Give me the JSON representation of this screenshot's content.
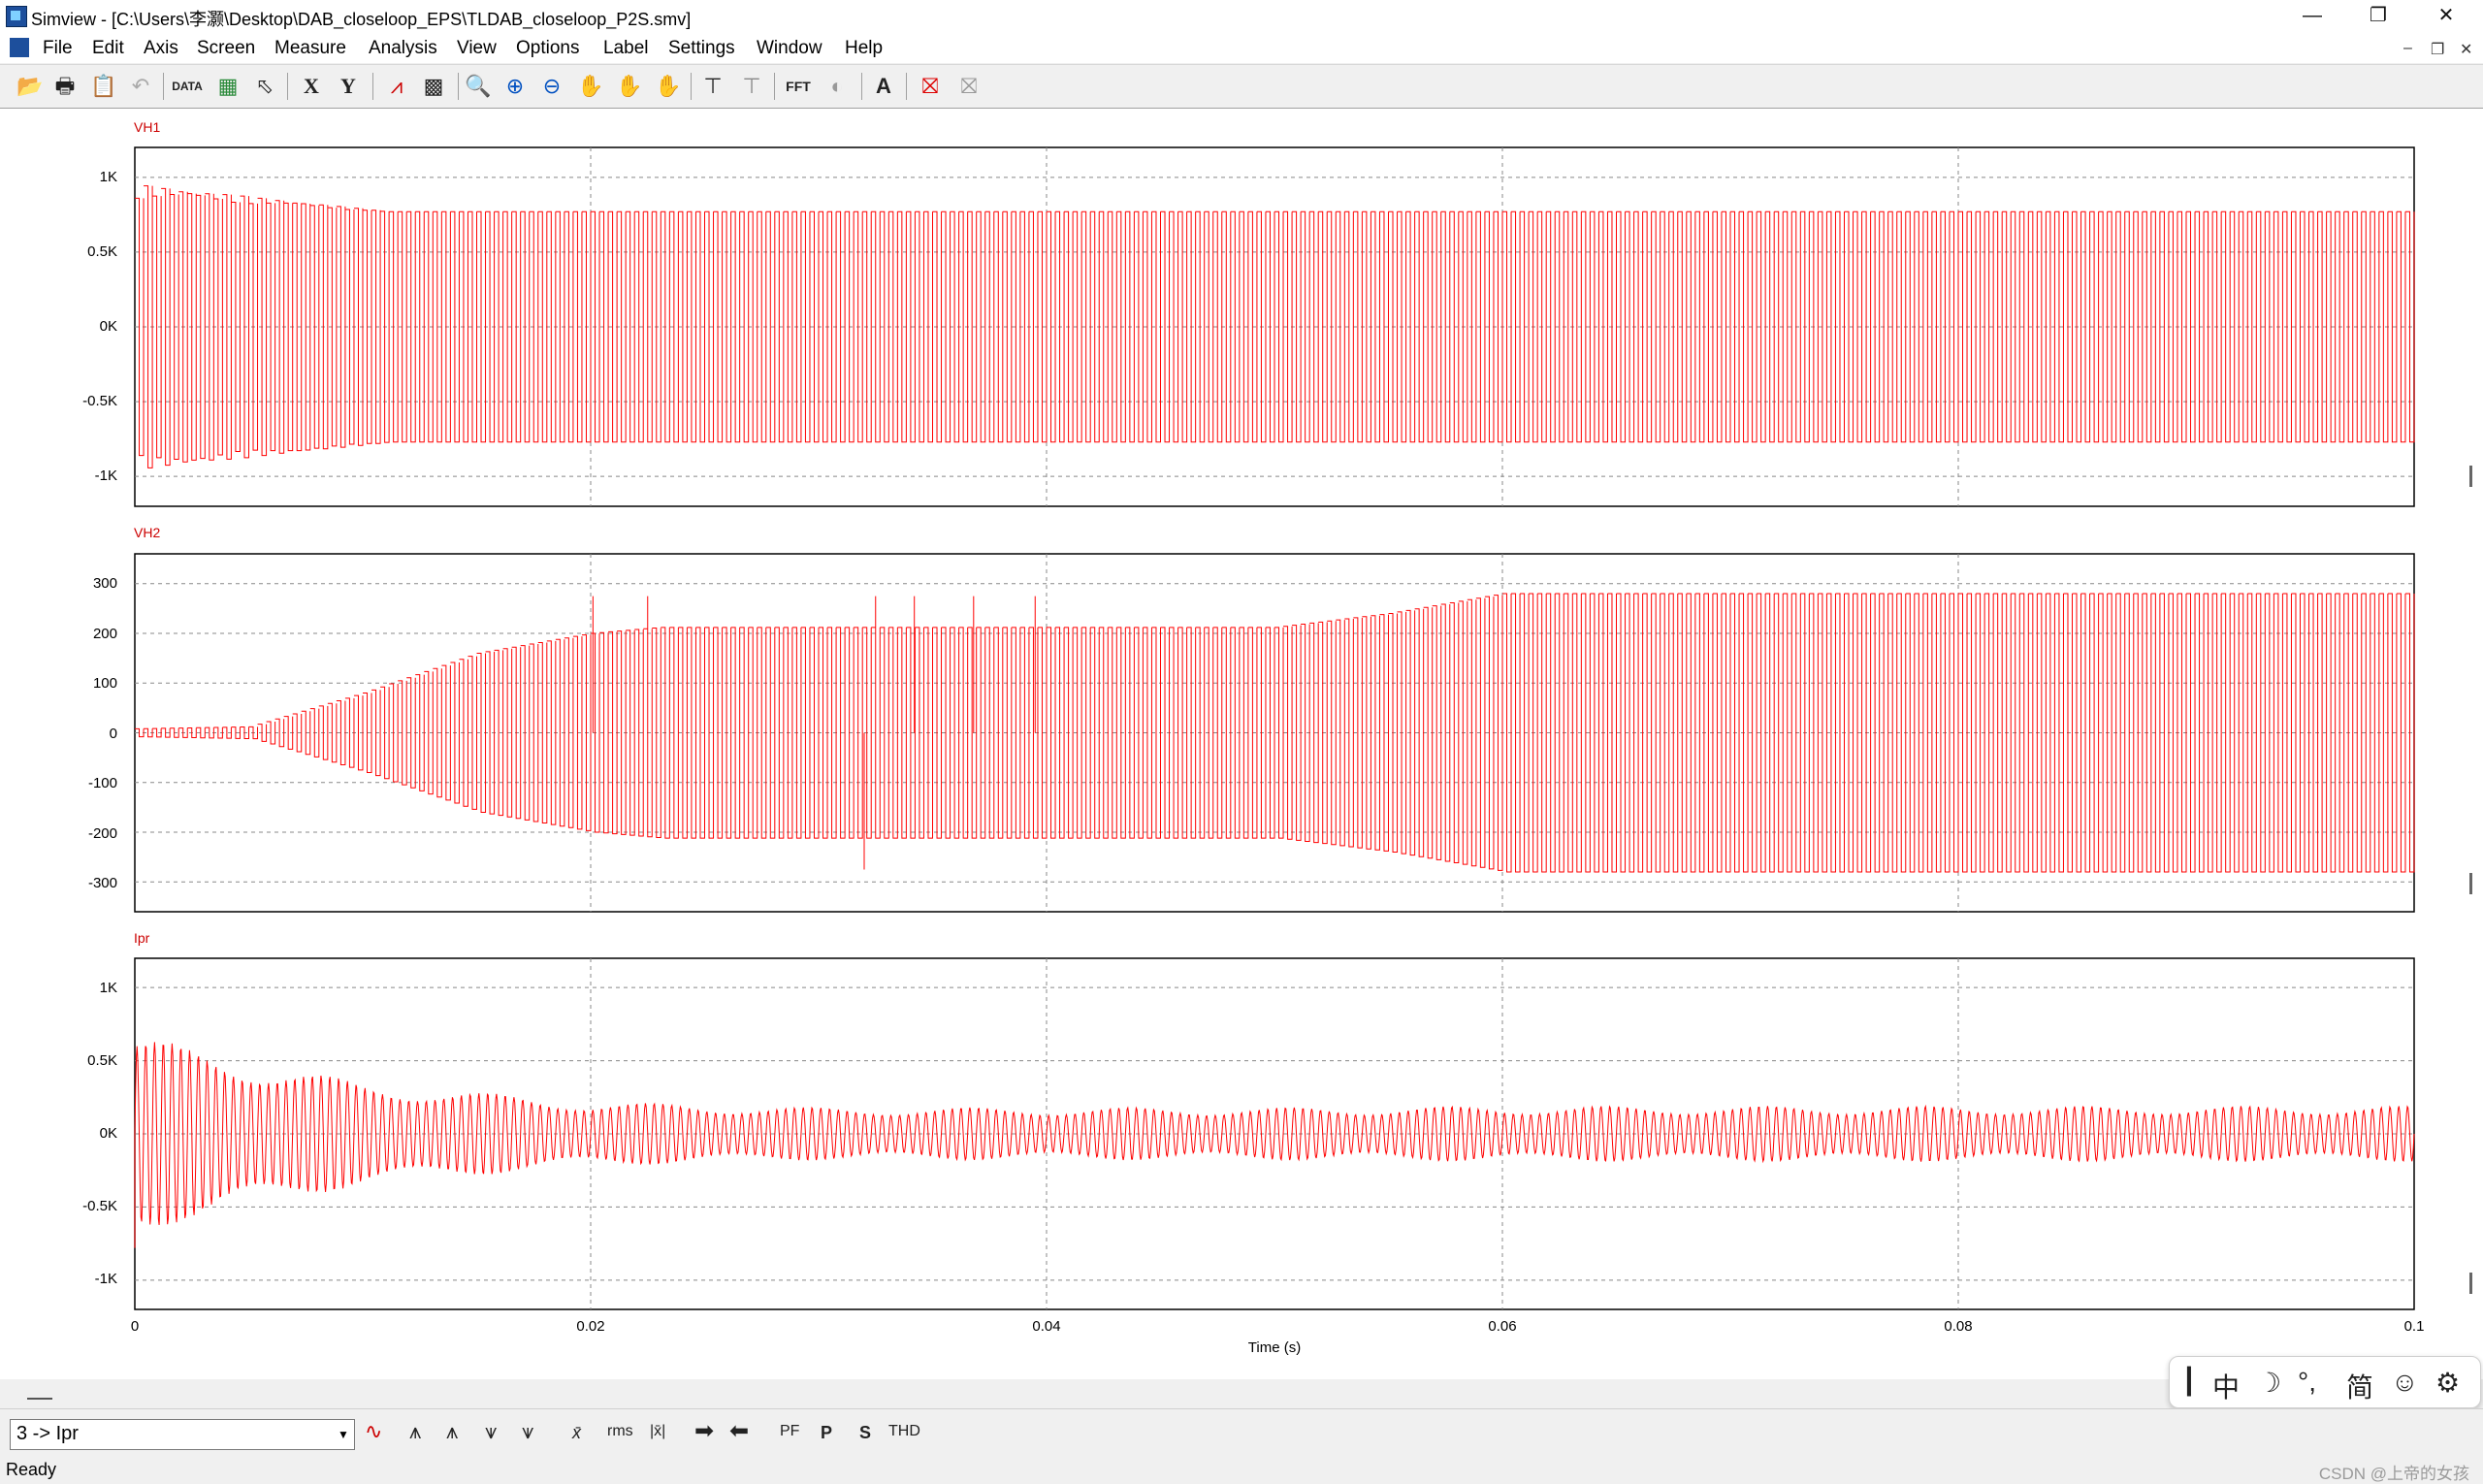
{
  "window": {
    "app_name": "Simview",
    "path": "[C:\\Users\\李灏\\Desktop\\DAB_closeloop_EPS\\TLDAB_closeloop_P2S.smv]",
    "minimize": "—",
    "restore": "❐",
    "close": "✕"
  },
  "menu": {
    "items": [
      "File",
      "Edit",
      "Axis",
      "Screen",
      "Measure",
      "Analysis",
      "View",
      "Options",
      "Label",
      "Settings",
      "Window",
      "Help"
    ],
    "mdi_controls": [
      "–",
      "❐",
      "✕"
    ]
  },
  "toolbar": {
    "icons": [
      "open-icon",
      "print-icon",
      "paste-icon",
      "undo-icon",
      "data-icon",
      "plot-icon",
      "edit-icon",
      "x-axis-icon",
      "y-axis-icon",
      "curve-icon",
      "screen-icon",
      "zoom-icon",
      "zoom-in-icon",
      "zoom-out-icon",
      "pan-icon",
      "pan-right-icon",
      "hand-icon",
      "cursor-icon",
      "cursor2-icon",
      "fft-icon",
      "circle-icon",
      "text-icon",
      "marker-icon",
      "marker2-icon"
    ],
    "x_label": "X",
    "y_label": "Y",
    "fft_label": "FFT",
    "text_label": "A"
  },
  "colors": {
    "trace": "#ff0000",
    "label": "#cc0000",
    "grid": "#888888"
  },
  "chart_data": [
    {
      "type": "line",
      "title": "VH1",
      "x_range": [
        0,
        0.1
      ],
      "ylim": [
        -1200,
        1200
      ],
      "yticks": [
        1000,
        500,
        0,
        -500,
        -1000
      ],
      "ytick_labels": [
        "1K",
        "0.5K",
        "0K",
        "-0.5K",
        "-1K"
      ],
      "grid": true,
      "series": [
        {
          "name": "VH1",
          "shape": "square-wave",
          "steady_amplitude": 770,
          "initial_peak": 950,
          "settle_time": 0.011
        }
      ]
    },
    {
      "type": "line",
      "title": "VH2",
      "x_range": [
        0,
        0.1
      ],
      "ylim": [
        -360,
        360
      ],
      "yticks": [
        300,
        200,
        100,
        0,
        -100,
        -200,
        -300
      ],
      "ytick_labels": [
        "300",
        "200",
        "100",
        "0",
        "-100",
        "-200",
        "-300"
      ],
      "grid": true,
      "series": [
        {
          "name": "VH2",
          "shape": "square-wave-envelope",
          "envelope": [
            [
              0,
              8
            ],
            [
              0.005,
              12
            ],
            [
              0.01,
              80
            ],
            [
              0.015,
              160
            ],
            [
              0.02,
              200
            ],
            [
              0.023,
              212
            ],
            [
              0.05,
              212
            ],
            [
              0.055,
              240
            ],
            [
              0.06,
              280
            ],
            [
              0.1,
              280
            ]
          ],
          "spikes": [
            [
              0.0201,
              275
            ],
            [
              0.0225,
              275
            ],
            [
              0.0325,
              275
            ],
            [
              0.0342,
              275
            ],
            [
              0.0368,
              275
            ],
            [
              0.0395,
              275
            ],
            [
              0.032,
              -275
            ]
          ]
        }
      ]
    },
    {
      "type": "line",
      "title": "Ipr",
      "x_range": [
        0,
        0.1
      ],
      "ylim": [
        -1200,
        1200
      ],
      "yticks": [
        1000,
        500,
        0,
        -500,
        -1000
      ],
      "ytick_labels": [
        "1K",
        "0.5K",
        "0K",
        "-0.5K",
        "-1K"
      ],
      "grid": true,
      "series": [
        {
          "name": "Ipr",
          "shape": "decaying-oscillation",
          "envelope": [
            [
              0,
              700
            ],
            [
              0.002,
              600
            ],
            [
              0.01,
              350
            ],
            [
              0.02,
              220
            ],
            [
              0.03,
              180
            ],
            [
              0.05,
              180
            ],
            [
              0.06,
              190
            ],
            [
              0.1,
              190
            ]
          ],
          "start_dip": -780
        }
      ]
    }
  ],
  "x_axis": {
    "ticks": [
      0,
      0.02,
      0.04,
      0.06,
      0.08,
      0.1
    ],
    "tick_labels": [
      "0",
      "0.02",
      "0.04",
      "0.06",
      "0.08",
      "0.1"
    ],
    "label": "Time (s)"
  },
  "bottom": {
    "selected_curve": "3 -> Ipr",
    "labels": [
      "PF",
      "P",
      "S",
      "THD"
    ],
    "rms_label": "rms"
  },
  "status": {
    "text": "Ready",
    "watermark": "CSDN @上帝的女孩"
  },
  "ime": [
    "┃",
    "中",
    "☽",
    "°,",
    "简",
    "☺",
    "⚙"
  ]
}
